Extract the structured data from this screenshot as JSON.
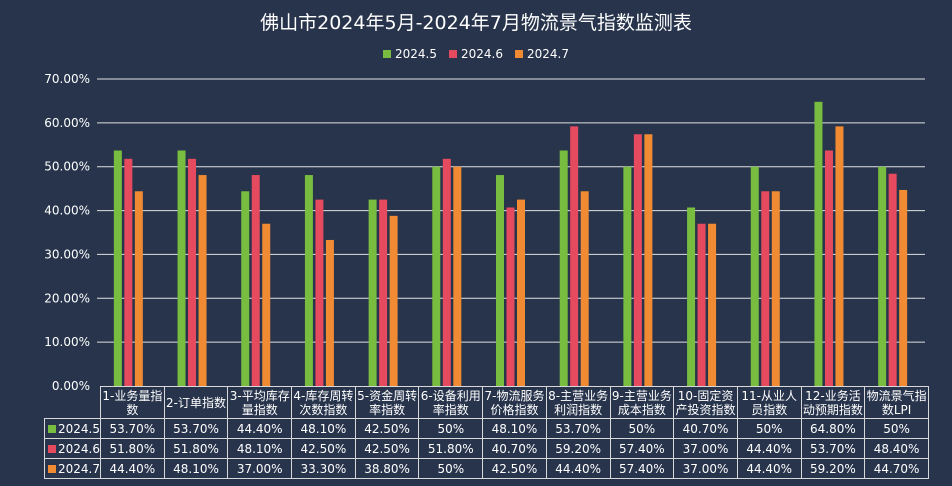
{
  "chart_data": {
    "type": "bar",
    "title": "佛山市2024年5月-2024年7月物流景气指数监测表",
    "categories": [
      "1-业务量指数",
      "2-订单指数",
      "3-平均库存量指数",
      "4-库存周转次数指数",
      "5-资金周转率指数",
      "6-设备利用率指数",
      "7-物流服务价格指数",
      "8-主营业务利润指数",
      "9-主营业务成本指数",
      "10-固定资产投资指数",
      "11-从业人员指数",
      "12-业务活动预期指数",
      "物流景气指数LPI"
    ],
    "series": [
      {
        "name": "2024.5",
        "color": "#78bd3f",
        "values": [
          53.7,
          53.7,
          44.4,
          48.1,
          42.5,
          50,
          48.1,
          53.7,
          50,
          40.7,
          50,
          64.8,
          50
        ],
        "labels": [
          "53.70%",
          "53.70%",
          "44.40%",
          "48.10%",
          "42.50%",
          "50%",
          "48.10%",
          "53.70%",
          "50%",
          "40.70%",
          "50%",
          "64.80%",
          "50%"
        ]
      },
      {
        "name": "2024.6",
        "color": "#e64a5e",
        "values": [
          51.8,
          51.8,
          48.1,
          42.5,
          42.5,
          51.8,
          40.7,
          59.2,
          57.4,
          37.0,
          44.4,
          53.7,
          48.4
        ],
        "labels": [
          "51.80%",
          "51.80%",
          "48.10%",
          "42.50%",
          "42.50%",
          "51.80%",
          "40.70%",
          "59.20%",
          "57.40%",
          "37.00%",
          "44.40%",
          "53.70%",
          "48.40%"
        ]
      },
      {
        "name": "2024.7",
        "color": "#f08a33",
        "values": [
          44.4,
          48.1,
          37.0,
          33.3,
          38.8,
          50,
          42.5,
          44.4,
          57.4,
          37.0,
          44.4,
          59.2,
          44.7
        ],
        "labels": [
          "44.40%",
          "48.10%",
          "37.00%",
          "33.30%",
          "38.80%",
          "50%",
          "42.50%",
          "44.40%",
          "57.40%",
          "37.00%",
          "44.40%",
          "59.20%",
          "44.70%"
        ]
      }
    ],
    "ylim": [
      0,
      70
    ],
    "yticks": [
      "0.00%",
      "10.00%",
      "20.00%",
      "30.00%",
      "40.00%",
      "50.00%",
      "60.00%",
      "70.00%"
    ],
    "grid": true,
    "legend": "top-center",
    "data_table": true
  }
}
